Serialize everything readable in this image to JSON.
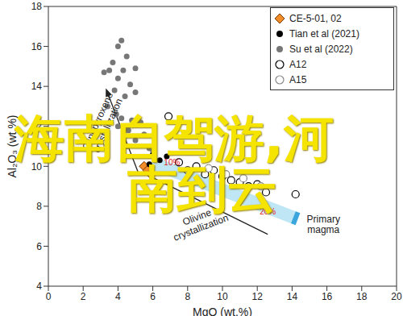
{
  "chart_data": {
    "type": "scatter",
    "x_label": "MgO (wt.%)",
    "y_label": "Al₂O₃ (wt.%)",
    "xlim": [
      0,
      20
    ],
    "xticks": [
      0,
      2,
      4,
      6,
      8,
      10,
      12,
      14,
      16,
      18,
      20
    ],
    "ylim": [
      4,
      18
    ],
    "yticks": [
      4,
      6,
      8,
      10,
      12,
      14,
      16,
      18
    ],
    "grid": false,
    "legend": "upper right",
    "series": [
      {
        "name": "CE-5-01, 02",
        "color": "#f28c28",
        "marker": "diamond",
        "x": [
          5.5,
          5.7,
          5.9
        ],
        "y": [
          10.0,
          9.8,
          9.6
        ]
      },
      {
        "name": "Tian et al (2021)",
        "color": "#000000",
        "marker": "circle",
        "x": [
          5.8,
          6.0,
          6.4,
          6.8
        ],
        "y": [
          10.1,
          10.6,
          10.3,
          10.5
        ]
      },
      {
        "name": "Su et al (2022)",
        "color": "#777777",
        "marker": "circle",
        "x": [
          4.2,
          4.0,
          3.7,
          4.5,
          3.5,
          3.2,
          4.3,
          5.0,
          4.0,
          4.7,
          3.8,
          4.4,
          5.0,
          3.4,
          3.9,
          4.2,
          4.8,
          5.3,
          4.0,
          4.6,
          5.5,
          5.0,
          4.5,
          5.8,
          6.0
        ],
        "y": [
          16.3,
          16.0,
          15.2,
          15.5,
          14.8,
          14.7,
          14.8,
          14.9,
          14.4,
          14.1,
          13.8,
          13.5,
          13.7,
          13.0,
          12.6,
          12.4,
          12.3,
          12.2,
          12.0,
          11.8,
          11.6,
          11.3,
          11.0,
          10.9,
          10.8
        ]
      },
      {
        "name": "A12",
        "color": "#000000",
        "marker": "open_circle",
        "x": [
          6.9,
          7.5,
          8.0,
          8.5,
          9.0,
          9.5,
          10.0,
          10.5,
          11.0,
          11.5,
          12.0,
          12.5,
          14.2
        ],
        "y": [
          12.5,
          10.2,
          9.8,
          10.0,
          9.6,
          9.8,
          9.5,
          9.3,
          9.2,
          9.0,
          9.1,
          8.7,
          8.6
        ]
      },
      {
        "name": "A15",
        "color": "#888888",
        "marker": "open_circle",
        "x": [
          9.2,
          10.2,
          11.2,
          12.2
        ],
        "y": [
          9.9,
          9.6,
          9.4,
          9.0
        ]
      }
    ],
    "annotations": [
      {
        "text": "Clinopyroxene\ncrystallization",
        "x": 3.0,
        "y": 12.2
      },
      {
        "text": "Olivine\ncrystallization",
        "x": 8.6,
        "y": 7.3
      },
      {
        "text": "Primary\nmagma",
        "x": 15.8,
        "y": 7.2
      },
      {
        "text": "10%",
        "x": 7.1,
        "y": 10.05,
        "color": "#e0201b"
      },
      {
        "text": "20%",
        "x": 12.6,
        "y": 7.6,
        "color": "#e0201b"
      }
    ],
    "arrows": [
      {
        "from": [
          5.2,
          9.6
        ],
        "to": [
          3.3,
          13.9
        ],
        "marker": "arrow"
      },
      {
        "from": [
          5.6,
          9.6
        ],
        "to": [
          12.6,
          6.6
        ],
        "marker": "none"
      }
    ],
    "band": {
      "from": [
        5.9,
        10.2
      ],
      "to": [
        14.2,
        7.4
      ],
      "color": "#bfe6f5"
    },
    "watermark": [
      "海南自驾游,河",
      "南到云"
    ]
  }
}
